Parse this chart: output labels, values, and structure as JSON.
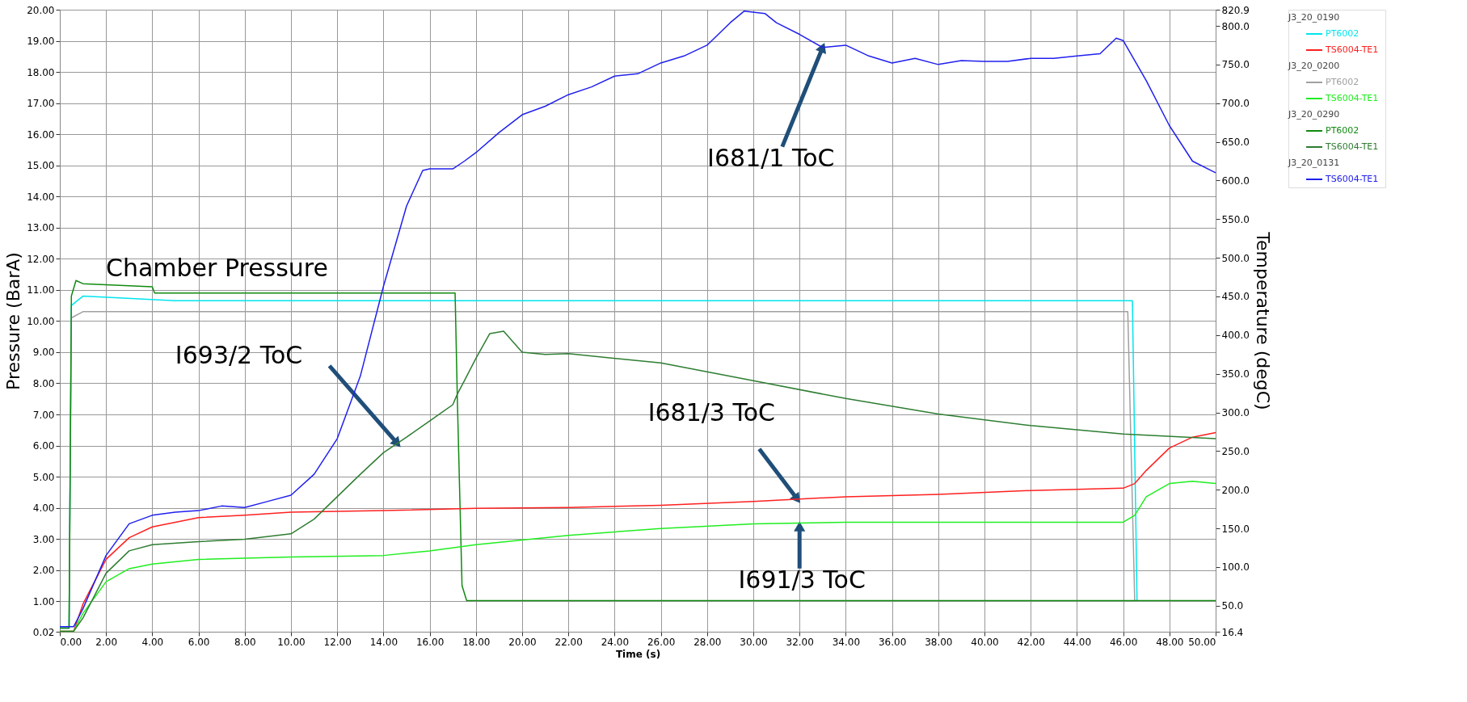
{
  "chart_data": {
    "type": "line",
    "xlabel": "Time (s)",
    "ylabel": "Pressure (BarA)",
    "y2label": "Temperature (degC)",
    "xlim": [
      0,
      50
    ],
    "ylim": [
      0.02,
      20
    ],
    "y2lim": [
      16.4,
      820.9
    ],
    "xticks": [
      {
        "value": 0,
        "label": "0.00"
      },
      {
        "value": 2,
        "label": "2.00"
      },
      {
        "value": 4,
        "label": "4.00"
      },
      {
        "value": 6,
        "label": "6.00"
      },
      {
        "value": 8,
        "label": "8.00"
      },
      {
        "value": 10,
        "label": "10.00"
      },
      {
        "value": 12,
        "label": "12.00"
      },
      {
        "value": 14,
        "label": "14.00"
      },
      {
        "value": 16,
        "label": "16.00"
      },
      {
        "value": 18,
        "label": "18.00"
      },
      {
        "value": 20,
        "label": "20.00"
      },
      {
        "value": 22,
        "label": "22.00"
      },
      {
        "value": 24,
        "label": "24.00"
      },
      {
        "value": 26,
        "label": "26.00"
      },
      {
        "value": 28,
        "label": "28.00"
      },
      {
        "value": 30,
        "label": "30.00"
      },
      {
        "value": 32,
        "label": "32.00"
      },
      {
        "value": 34,
        "label": "34.00"
      },
      {
        "value": 36,
        "label": "36.00"
      },
      {
        "value": 38,
        "label": "38.00"
      },
      {
        "value": 40,
        "label": "40.00"
      },
      {
        "value": 42,
        "label": "42.00"
      },
      {
        "value": 44,
        "label": "44.00"
      },
      {
        "value": 46,
        "label": "46.00"
      },
      {
        "value": 48,
        "label": "48.00"
      },
      {
        "value": 50,
        "label": "50.00"
      }
    ],
    "yticks": [
      0.02,
      {
        "value": 1,
        "label": "1.00"
      },
      {
        "value": 2,
        "label": "2.00"
      },
      {
        "value": 3,
        "label": "3.00"
      },
      {
        "value": 4,
        "label": "4.00"
      },
      {
        "value": 5,
        "label": "5.00"
      },
      {
        "value": 6,
        "label": "6.00"
      },
      {
        "value": 7,
        "label": "7.00"
      },
      {
        "value": 8,
        "label": "8.00"
      },
      {
        "value": 9,
        "label": "9.00"
      },
      {
        "value": 10,
        "label": "10.00"
      },
      {
        "value": 11,
        "label": "11.00"
      },
      {
        "value": 12,
        "label": "12.00"
      },
      {
        "value": 13,
        "label": "13.00"
      },
      {
        "value": 14,
        "label": "14.00"
      },
      {
        "value": 15,
        "label": "15.00"
      },
      {
        "value": 16,
        "label": "16.00"
      },
      {
        "value": 17,
        "label": "17.00"
      },
      {
        "value": 18,
        "label": "18.00"
      },
      {
        "value": 19,
        "label": "19.00"
      },
      {
        "value": 20,
        "label": "20.00"
      }
    ],
    "y2ticks": [
      16.4,
      {
        "value": 50,
        "label": "50.0"
      },
      {
        "value": 100,
        "label": "100.0"
      },
      {
        "value": 150,
        "label": "150.0"
      },
      {
        "value": 200,
        "label": "200.0"
      },
      {
        "value": 250,
        "label": "250.0"
      },
      {
        "value": 300,
        "label": "300.0"
      },
      {
        "value": 350,
        "label": "350.0"
      },
      {
        "value": 400,
        "label": "400.0"
      },
      {
        "value": 450,
        "label": "450.0"
      },
      {
        "value": 500,
        "label": "500.0"
      },
      {
        "value": 550,
        "label": "550.0"
      },
      {
        "value": 600,
        "label": "600.0"
      },
      {
        "value": 650,
        "label": "650.0"
      },
      {
        "value": 700,
        "label": "700.0"
      },
      {
        "value": 750,
        "label": "750.0"
      },
      {
        "value": 800,
        "label": "800.0"
      },
      820.9
    ],
    "grid": true,
    "legend": "right",
    "marker": "none",
    "line_style": "solid",
    "series": [
      {
        "name": "PT6002",
        "color": "#00e5ee",
        "x": [
          0,
          0.4,
          0.5,
          1,
          5,
          10,
          20,
          30,
          40,
          46.4,
          46.6,
          48,
          50
        ],
        "values": [
          0.14,
          0.14,
          10.5,
          10.8,
          10.65,
          10.65,
          10.65,
          10.65,
          10.65,
          10.65,
          1.0,
          1.0,
          1.0
        ]
      },
      {
        "name": "TS6004-TE1",
        "axis": "y2",
        "color": "#ff2020",
        "x": [
          0,
          0.6,
          1,
          2,
          3,
          4,
          6,
          8,
          10,
          14,
          18,
          22,
          26,
          30,
          34,
          38,
          42,
          46,
          46.5,
          47,
          48,
          49,
          50
        ],
        "values": [
          17,
          17,
          52,
          110,
          138,
          152,
          164,
          167,
          171,
          173,
          176,
          177,
          180,
          185,
          191,
          194,
          199,
          202,
          208,
          225,
          254,
          268,
          274
        ]
      },
      {
        "name": "PT6002",
        "color": "#a0a0a0",
        "x": [
          0,
          0.4,
          0.5,
          1,
          5,
          10,
          20,
          30,
          40,
          46.2,
          46.5,
          48,
          50
        ],
        "values": [
          0.14,
          0.14,
          10.1,
          10.3,
          10.3,
          10.3,
          10.3,
          10.3,
          10.3,
          10.3,
          1.0,
          1.0,
          1.0
        ]
      },
      {
        "name": "TS6004-TE1",
        "axis": "y2",
        "color": "#20ee20",
        "x": [
          0,
          0.6,
          1,
          2,
          3,
          4,
          6,
          10,
          14,
          16,
          18,
          22,
          26,
          30,
          34,
          38,
          42,
          46,
          46.5,
          47,
          48,
          49,
          50
        ],
        "values": [
          17,
          17,
          40,
          81,
          98,
          104,
          110,
          113,
          115,
          121,
          129,
          141,
          150,
          156,
          158,
          158,
          158,
          158,
          167,
          191,
          208,
          211,
          208
        ]
      },
      {
        "name": "PT6002",
        "color": "#108a10",
        "x": [
          0,
          0.4,
          0.5,
          0.7,
          1,
          4,
          4.1,
          10,
          17.1,
          17.2,
          17.4,
          17.6,
          20,
          30,
          40,
          50
        ],
        "values": [
          0.14,
          0.14,
          10.8,
          11.3,
          11.2,
          11.1,
          10.9,
          10.9,
          10.9,
          7.4,
          1.5,
          1.02,
          1.02,
          1.02,
          1.02,
          1.02
        ]
      },
      {
        "name": "TS6004-TE1",
        "axis": "y2",
        "color": "#2e7d32",
        "x": [
          0,
          0.6,
          1,
          2,
          3,
          4,
          6,
          8,
          10,
          11,
          12,
          13,
          14,
          15,
          16,
          17,
          17.2,
          17.5,
          18,
          18.6,
          19.2,
          20,
          21,
          22,
          26,
          30,
          34,
          38,
          42,
          46,
          50
        ],
        "values": [
          17,
          17,
          34,
          92,
          121,
          129,
          133,
          136,
          143,
          162,
          191,
          220,
          248,
          268,
          289,
          310,
          324,
          341,
          370,
          402,
          405,
          378,
          375,
          376,
          364,
          341,
          318,
          298,
          283,
          272,
          266
        ]
      },
      {
        "name": "TS6004-TE1",
        "axis": "y2",
        "color": "#2020ee",
        "x": [
          0,
          0.6,
          1,
          2,
          3,
          4,
          5,
          6,
          7,
          8,
          9,
          10,
          11,
          12,
          13,
          14,
          15,
          15.7,
          16,
          17,
          17.5,
          18,
          19,
          20,
          21,
          22,
          23,
          24,
          25,
          26,
          27,
          28,
          29,
          29.6,
          30.5,
          31,
          32,
          33,
          34,
          35,
          36,
          37,
          38,
          39,
          40,
          41,
          42,
          43,
          44,
          45,
          45.7,
          46,
          47,
          48,
          49,
          50
        ],
        "values": [
          23,
          23,
          46,
          115,
          156,
          167,
          171,
          173,
          179,
          177,
          185,
          193,
          220,
          266,
          347,
          463,
          567,
          613,
          615,
          615,
          625,
          636,
          662,
          685,
          696,
          711,
          721,
          735,
          738,
          752,
          761,
          775,
          804,
          819,
          816,
          804,
          789,
          772,
          775,
          761,
          752,
          758,
          750,
          755,
          754,
          754,
          758,
          758,
          761,
          764,
          784,
          781,
          729,
          671,
          625,
          610
        ]
      }
    ],
    "annotations": [
      {
        "text": "Chamber Pressure",
        "x": 6.8,
        "y": 11.0
      },
      {
        "text": "I693/2 ToC",
        "x": 14.6,
        "y": 6.07
      },
      {
        "text": "I681/1 ToC",
        "x": 33.0,
        "y": 18.79
      },
      {
        "text": "I681/3 ToC",
        "x": 31.9,
        "y": 4.28
      },
      {
        "text": "I691/3 ToC",
        "x": 32.0,
        "y": 3.4
      },
      "J3_20_0190",
      "J3_20_0200",
      "J3_20_0290",
      "J3_20_0131"
    ]
  }
}
